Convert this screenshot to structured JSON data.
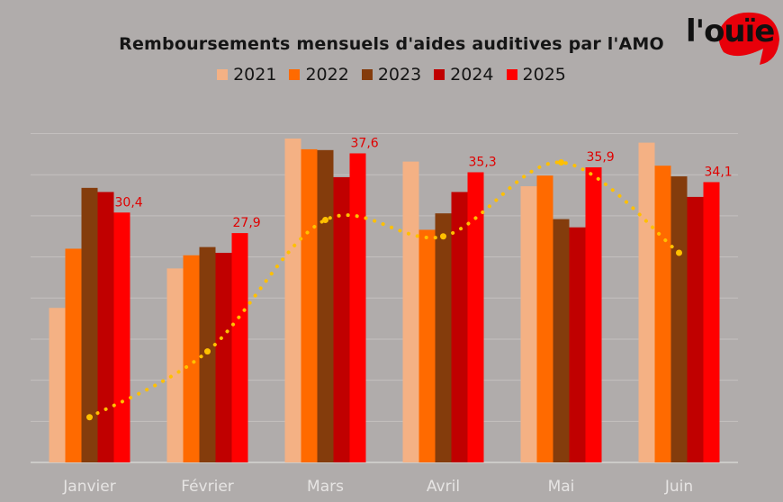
{
  "chart_data": {
    "type": "bar",
    "title": "Remboursements mensuels d'aides auditives par l'AMO",
    "categories": [
      "Janvier",
      "Février",
      "Mars",
      "Avril",
      "Mai",
      "Juin"
    ],
    "series": [
      {
        "name": "2021",
        "color": "#f4b184",
        "values": [
          18.8,
          23.6,
          39.4,
          36.6,
          33.6,
          38.9
        ]
      },
      {
        "name": "2022",
        "color": "#ff6a00",
        "values": [
          26.0,
          25.2,
          38.1,
          28.3,
          34.9,
          36.1
        ]
      },
      {
        "name": "2023",
        "color": "#843c0c",
        "values": [
          33.4,
          26.2,
          38.0,
          30.3,
          29.6,
          34.8
        ]
      },
      {
        "name": "2024",
        "color": "#c00000",
        "values": [
          32.9,
          25.5,
          34.7,
          32.9,
          28.6,
          32.3
        ]
      },
      {
        "name": "2025",
        "color": "#ff0000",
        "values": [
          30.4,
          27.9,
          37.6,
          35.3,
          35.9,
          34.1
        ]
      }
    ],
    "data_labels": [
      "30,4",
      "27,9",
      "37,6",
      "35,3",
      "35,9",
      "34,1"
    ],
    "trend_line": {
      "color": "#ffc000",
      "style": "dotted",
      "values": [
        5.5,
        13.5,
        29.5,
        27.5,
        36.5,
        25.5
      ]
    },
    "ylim": [
      0,
      44
    ],
    "grid": true,
    "legend_position": "top-center"
  },
  "logo": {
    "text": "l'ouïe",
    "color": "#e8000a"
  }
}
